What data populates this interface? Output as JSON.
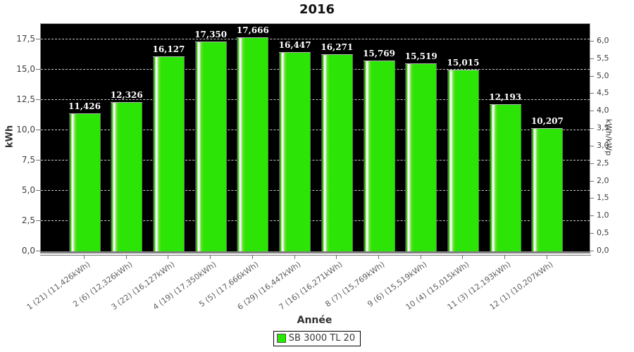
{
  "chart_data": {
    "type": "bar",
    "title": "2016",
    "xlabel": "Année",
    "ylabel": "kWh",
    "y2label": "kWh/kWp",
    "plot_background": "#000000",
    "grid": {
      "horizontal": true,
      "style": "dashed",
      "color": "#C8C8C8"
    },
    "legend_position": "bottom-center",
    "legend": {
      "label": "SB 3000 TL 20",
      "swatch_color": "#2CE406"
    },
    "categories": [
      "1 (21) (11,426kWh)",
      "2 (6) (12,326kWh)",
      "3 (22) (16,127kWh)",
      "4 (19) (17,350kWh)",
      "5 (5) (17,666kWh)",
      "6 (29) (16,447kWh)",
      "7 (16) (16,271kWh)",
      "8 (7) (15,769kWh)",
      "9 (6) (15,519kWh)",
      "10 (4) (15,015kWh)",
      "11 (3) (12,193kWh)",
      "12 (1) (10,207kWh)"
    ],
    "series": [
      {
        "name": "SB 3000 TL 20",
        "unit": "kWh",
        "color": "#2CE406",
        "values": [
          11.426,
          12.326,
          16.127,
          17.35,
          17.666,
          16.447,
          16.271,
          15.769,
          15.519,
          15.015,
          12.193,
          10.207
        ]
      }
    ],
    "bar_value_labels": [
      "11,426",
      "12,326",
      "16,127",
      "17,350",
      "17,666",
      "16,447",
      "16,271",
      "15,769",
      "15,519",
      "15,015",
      "12,193",
      "10,207"
    ],
    "ylim": [
      0,
      18.8
    ],
    "yticks": [
      0,
      2.5,
      5,
      7.5,
      10,
      12.5,
      15,
      17.5
    ],
    "ytick_labels": [
      "0,0",
      "2,5",
      "5,0",
      "7,5",
      "10,0",
      "12,5",
      "15,0",
      "17,5"
    ],
    "y2lim": [
      0,
      6.5
    ],
    "y2ticks": [
      0,
      0.5,
      1,
      1.5,
      2,
      2.5,
      3,
      3.5,
      4,
      4.5,
      5,
      5.5,
      6
    ],
    "y2tick_labels": [
      "0,0",
      "0,5",
      "1,0",
      "1,5",
      "2,0",
      "2,5",
      "3,0",
      "3,5",
      "4,0",
      "4,5",
      "5,0",
      "5,5",
      "6,0"
    ]
  }
}
